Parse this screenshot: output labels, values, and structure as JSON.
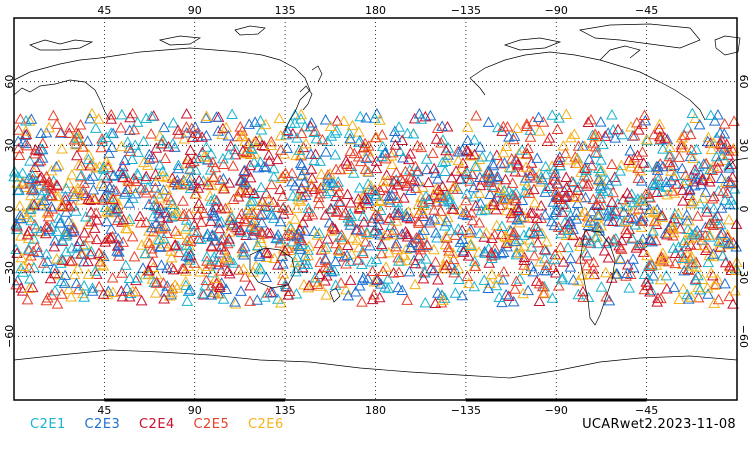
{
  "map": {
    "lon_ticks": [
      "45",
      "90",
      "135",
      "180",
      "−135",
      "−90",
      "−45"
    ],
    "lat_ticks": [
      "60",
      "30",
      "0",
      "−30",
      "−60"
    ],
    "lat_range": [
      -90,
      90
    ],
    "lon_center": 180,
    "grid": "dotted",
    "marker": "open-triangle",
    "marker_lat_range": [
      -45,
      45
    ]
  },
  "legend": [
    {
      "label": "C2E1",
      "color": "#17b3cf"
    },
    {
      "label": "C2E3",
      "color": "#1f6fd0"
    },
    {
      "label": "C2E4",
      "color": "#c8102e"
    },
    {
      "label": "C2E5",
      "color": "#e8402a"
    },
    {
      "label": "C2E6",
      "color": "#f5b21a"
    }
  ],
  "stamp": "UCARwet2.2023-11-08"
}
